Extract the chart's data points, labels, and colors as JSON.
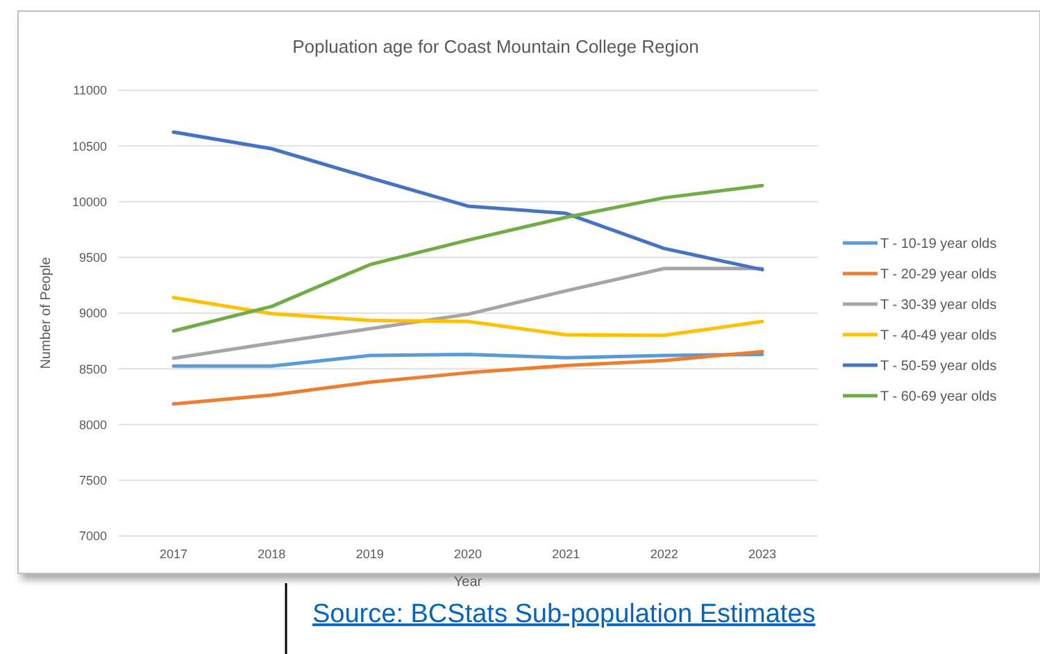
{
  "chart_data": {
    "type": "line",
    "title": "Popluation age for Coast Mountain College Region",
    "xlabel": "Year",
    "ylabel": "Number of People",
    "categories": [
      "2017",
      "2018",
      "2019",
      "2020",
      "2021",
      "2022",
      "2023"
    ],
    "series": [
      {
        "name": "T - 10-19 year olds",
        "color": "#5b9bd5",
        "values": [
          8525,
          8525,
          8620,
          8630,
          8600,
          8620,
          8630
        ]
      },
      {
        "name": "T - 20-29 year olds",
        "color": "#ed7d31",
        "values": [
          8185,
          8265,
          8380,
          8465,
          8530,
          8575,
          8655
        ]
      },
      {
        "name": "T - 30-39 year olds",
        "color": "#a5a5a5",
        "values": [
          8595,
          8730,
          8860,
          8990,
          9200,
          9400,
          9400
        ]
      },
      {
        "name": "T - 40-49 year olds",
        "color": "#ffc000",
        "values": [
          9140,
          8995,
          8935,
          8925,
          8805,
          8800,
          8925
        ]
      },
      {
        "name": "T - 50-59 year olds",
        "color": "#4472c4",
        "values": [
          10625,
          10475,
          10215,
          9960,
          9895,
          9580,
          9390
        ]
      },
      {
        "name": "T - 60-69 year olds",
        "color": "#70ad47",
        "values": [
          8840,
          9060,
          9435,
          9655,
          9860,
          10035,
          10145
        ]
      }
    ],
    "ylim": [
      7000,
      11000
    ],
    "yticks": [
      7000,
      7500,
      8000,
      8500,
      9000,
      9500,
      10000,
      10500,
      11000
    ],
    "grid": "y",
    "legend": "right",
    "marker": "none",
    "line_style": "solid",
    "annotations": [
      "Source: BCStats Sub-population Estimates"
    ]
  }
}
